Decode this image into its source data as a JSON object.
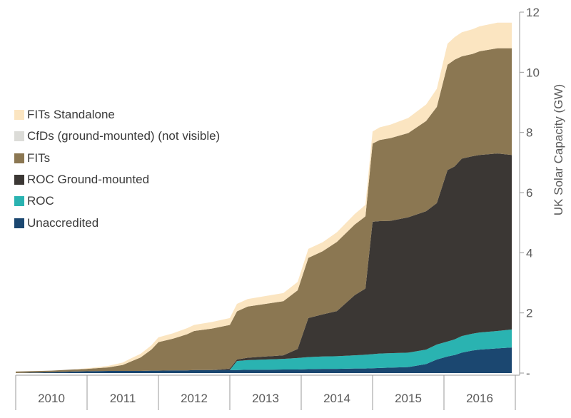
{
  "chart_data": {
    "type": "area",
    "stacked": true,
    "ylabel": "UK Solar Capacity (GW)",
    "y_axis_position": "right",
    "ylim": [
      0,
      12
    ],
    "yticks": [
      0,
      2,
      4,
      6,
      8,
      10,
      12
    ],
    "ytick_labels": [
      "-",
      "2",
      "4",
      "6",
      "8",
      "10",
      "12"
    ],
    "xlim": [
      2010,
      2017
    ],
    "year_labels": [
      "2010",
      "2011",
      "2012",
      "2013",
      "2014",
      "2015",
      "2016"
    ],
    "legend_position": "left",
    "x": [
      2010.0,
      2010.5,
      2010.8,
      2011.0,
      2011.3,
      2011.5,
      2011.6,
      2011.75,
      2011.9,
      2012.0,
      2012.2,
      2012.4,
      2012.5,
      2012.75,
      2013.0,
      2013.1,
      2013.25,
      2013.5,
      2013.75,
      2013.95,
      2014.1,
      2014.3,
      2014.5,
      2014.75,
      2014.9,
      2015.0,
      2015.1,
      2015.25,
      2015.5,
      2015.75,
      2015.9,
      2016.05,
      2016.15,
      2016.25,
      2016.4,
      2016.5,
      2016.75,
      2016.95
    ],
    "series": [
      {
        "name": "Unaccredited",
        "color": "#1b4770",
        "values": [
          0.0,
          0.03,
          0.05,
          0.06,
          0.07,
          0.07,
          0.07,
          0.07,
          0.08,
          0.08,
          0.09,
          0.09,
          0.1,
          0.1,
          0.1,
          0.1,
          0.11,
          0.11,
          0.12,
          0.12,
          0.13,
          0.14,
          0.14,
          0.15,
          0.15,
          0.16,
          0.17,
          0.18,
          0.2,
          0.3,
          0.45,
          0.55,
          0.6,
          0.68,
          0.75,
          0.78,
          0.82,
          0.85
        ]
      },
      {
        "name": "ROC",
        "color": "#2ab3b1",
        "values": [
          0.0,
          0.0,
          0.0,
          0.0,
          0.0,
          0.0,
          0.0,
          0.0,
          0.0,
          0.0,
          0.0,
          0.0,
          0.0,
          0.0,
          0.0,
          0.3,
          0.32,
          0.34,
          0.35,
          0.38,
          0.4,
          0.41,
          0.42,
          0.44,
          0.46,
          0.47,
          0.48,
          0.48,
          0.48,
          0.48,
          0.5,
          0.5,
          0.52,
          0.55,
          0.56,
          0.57,
          0.58,
          0.6
        ]
      },
      {
        "name": "ROC Ground-mounted",
        "color": "#3b3734",
        "values": [
          0.0,
          0.0,
          0.0,
          0.0,
          0.0,
          0.0,
          0.0,
          0.0,
          0.0,
          0.0,
          0.0,
          0.0,
          0.0,
          0.0,
          0.05,
          0.05,
          0.08,
          0.1,
          0.12,
          0.3,
          1.3,
          1.4,
          1.5,
          2.0,
          2.2,
          4.4,
          4.4,
          4.4,
          4.5,
          4.6,
          4.7,
          5.7,
          5.75,
          5.9,
          5.9,
          5.9,
          5.9,
          5.8
        ]
      },
      {
        "name": "FITs",
        "color": "#8b7752",
        "values": [
          0.05,
          0.05,
          0.07,
          0.08,
          0.12,
          0.2,
          0.3,
          0.45,
          0.7,
          0.95,
          1.05,
          1.2,
          1.3,
          1.38,
          1.45,
          1.6,
          1.7,
          1.75,
          1.8,
          1.95,
          2.0,
          2.1,
          2.3,
          2.35,
          2.4,
          2.6,
          2.7,
          2.75,
          2.8,
          3.0,
          3.2,
          3.5,
          3.55,
          3.4,
          3.4,
          3.45,
          3.5,
          3.55
        ]
      },
      {
        "name": "CfDs (ground-mounted) (not visible)",
        "color": "#dcdcd8",
        "values": [
          0.0,
          0.0,
          0.0,
          0.0,
          0.0,
          0.0,
          0.0,
          0.0,
          0.0,
          0.0,
          0.0,
          0.0,
          0.0,
          0.0,
          0.0,
          0.0,
          0.0,
          0.0,
          0.0,
          0.0,
          0.0,
          0.0,
          0.0,
          0.0,
          0.0,
          0.0,
          0.0,
          0.0,
          0.0,
          0.0,
          0.0,
          0.0,
          0.0,
          0.0,
          0.0,
          0.0,
          0.0,
          0.0
        ]
      },
      {
        "name": "FITs Standalone",
        "color": "#fbe5c1",
        "values": [
          0.0,
          0.0,
          0.0,
          0.02,
          0.05,
          0.08,
          0.1,
          0.12,
          0.14,
          0.16,
          0.18,
          0.2,
          0.2,
          0.22,
          0.23,
          0.25,
          0.25,
          0.26,
          0.27,
          0.28,
          0.3,
          0.3,
          0.32,
          0.35,
          0.38,
          0.4,
          0.42,
          0.45,
          0.5,
          0.55,
          0.6,
          0.7,
          0.75,
          0.8,
          0.82,
          0.83,
          0.85,
          0.85
        ]
      }
    ]
  }
}
